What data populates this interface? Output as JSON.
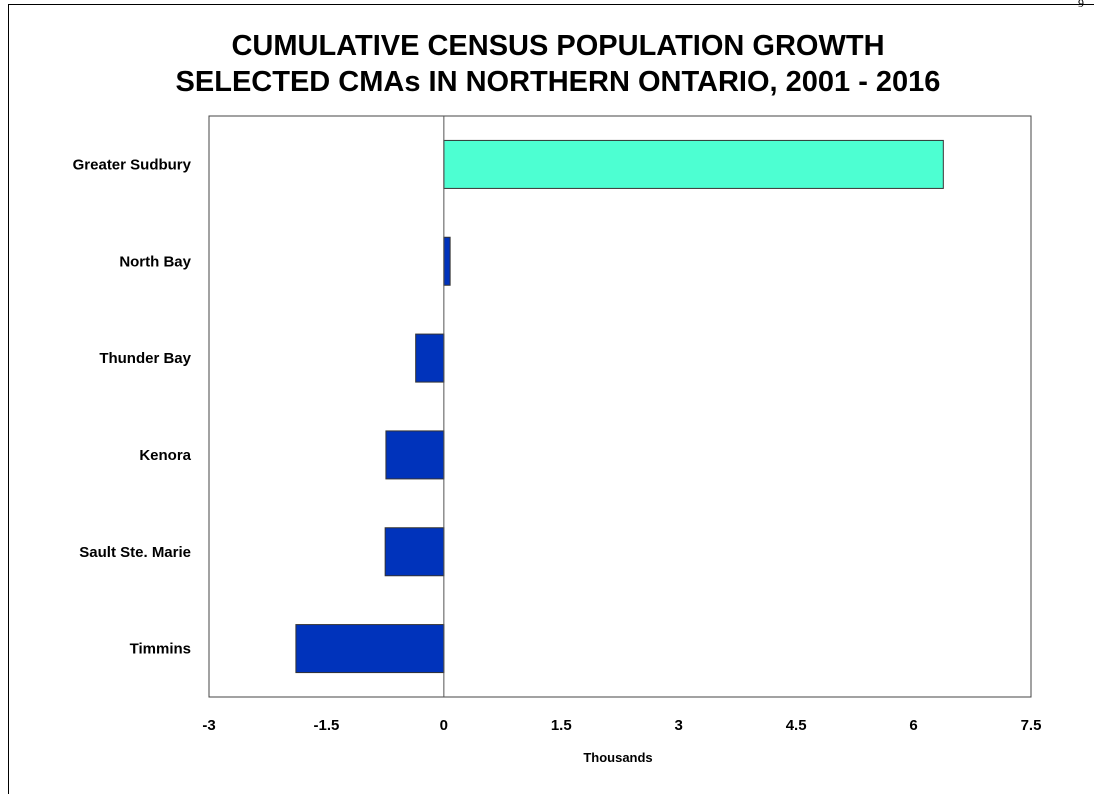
{
  "page_number": "9",
  "chart_data": {
    "type": "bar",
    "orientation": "horizontal",
    "title": "CUMULATIVE CENSUS POPULATION GROWTH",
    "subtitle": "SELECTED CMAs IN NORTHERN ONTARIO, 2001 - 2016",
    "xlabel": "Thousands",
    "ylabel": "",
    "categories": [
      "Greater Sudbury",
      "North Bay",
      "Thunder Bay",
      "Kenora",
      "Sault Ste. Marie",
      "Timmins"
    ],
    "values": [
      6.38,
      0.08,
      -0.36,
      -0.74,
      -0.75,
      -1.89
    ],
    "xlim": [
      -3,
      7.5
    ],
    "xticks": [
      -3,
      -1.5,
      0,
      1.5,
      3,
      4.5,
      6,
      7.5
    ],
    "xtick_labels": [
      "-3",
      "-1.5",
      "0",
      "1.5",
      "3",
      "4.5",
      "6",
      "7.5"
    ],
    "grid": false,
    "legend": "none",
    "colors": {
      "highlight": "#4dffd2",
      "default": "#0033bb",
      "border": "#333333"
    },
    "highlight_index": 0
  }
}
